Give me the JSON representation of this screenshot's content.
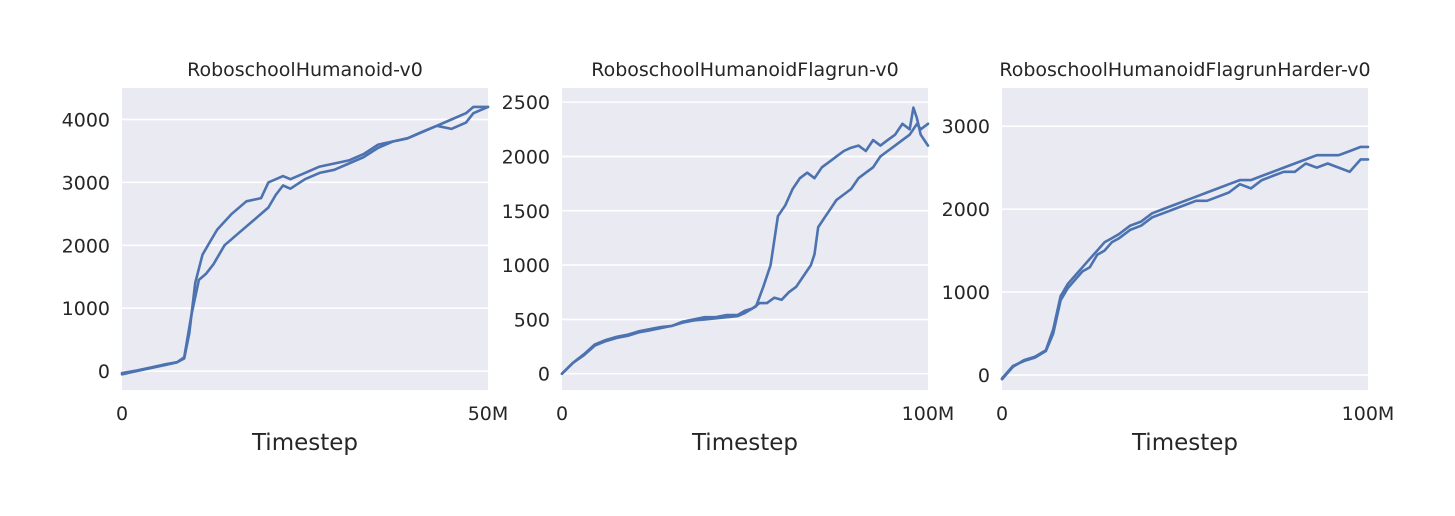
{
  "chart_data": [
    {
      "type": "line",
      "title": "RoboschoolHumanoid-v0",
      "xlabel": "Timestep",
      "ylabel": "",
      "xlim": [
        0,
        50000000
      ],
      "ylim": [
        -300,
        4500
      ],
      "xticks": [
        {
          "value": 0,
          "label": "0"
        },
        {
          "value": 50000000,
          "label": "50M"
        }
      ],
      "yticks": [
        {
          "value": 0,
          "label": "0"
        },
        {
          "value": 1000,
          "label": "1000"
        },
        {
          "value": 2000,
          "label": "2000"
        },
        {
          "value": 3000,
          "label": "3000"
        },
        {
          "value": 4000,
          "label": "4000"
        }
      ],
      "grid": true,
      "series": [
        {
          "x": [
            0,
            2,
            4,
            6,
            7.5,
            8.5,
            9.2,
            10,
            11,
            12,
            13,
            15,
            17,
            19,
            20,
            22,
            23,
            25,
            27,
            29,
            31,
            33,
            35,
            37,
            39,
            41,
            43,
            45,
            47,
            48,
            50
          ],
          "y": [
            -50,
            0,
            50,
            100,
            140,
            200,
            600,
            1400,
            1850,
            2050,
            2250,
            2500,
            2700,
            2750,
            3000,
            3100,
            3050,
            3150,
            3250,
            3300,
            3350,
            3450,
            3600,
            3650,
            3700,
            3800,
            3900,
            4000,
            4100,
            4200,
            4200
          ]
        },
        {
          "x": [
            0,
            2,
            4,
            6,
            7.5,
            8.5,
            9.5,
            10.5,
            11.5,
            12.5,
            14,
            16,
            18,
            20,
            21,
            22,
            23,
            25,
            27,
            29,
            31,
            33,
            35,
            37,
            39,
            41,
            43,
            45,
            47,
            48,
            50
          ],
          "y": [
            -30,
            10,
            60,
            110,
            140,
            220,
            900,
            1450,
            1550,
            1700,
            2000,
            2200,
            2400,
            2600,
            2800,
            2950,
            2900,
            3050,
            3150,
            3200,
            3300,
            3400,
            3550,
            3650,
            3700,
            3800,
            3900,
            3850,
            3950,
            4100,
            4200
          ]
        }
      ]
    },
    {
      "type": "line",
      "title": "RoboschoolHumanoidFlagrun-v0",
      "xlabel": "Timestep",
      "ylabel": "",
      "xlim": [
        0,
        100000000
      ],
      "ylim": [
        -150,
        2630
      ],
      "xticks": [
        {
          "value": 0,
          "label": "0"
        },
        {
          "value": 100000000,
          "label": "100M"
        }
      ],
      "yticks": [
        {
          "value": 0,
          "label": "0"
        },
        {
          "value": 500,
          "label": "500"
        },
        {
          "value": 1000,
          "label": "1000"
        },
        {
          "value": 1500,
          "label": "1500"
        },
        {
          "value": 2000,
          "label": "2000"
        },
        {
          "value": 2500,
          "label": "2500"
        }
      ],
      "grid": true,
      "series": [
        {
          "x": [
            0,
            3,
            6,
            9,
            12,
            15,
            18,
            21,
            24,
            27,
            30,
            33,
            36,
            39,
            42,
            45,
            48,
            50,
            52,
            53,
            55,
            57,
            59,
            61,
            63,
            65,
            67,
            69,
            71,
            73,
            75,
            77,
            79,
            81,
            83,
            85,
            87,
            89,
            91,
            93,
            95,
            96,
            97,
            98,
            100
          ],
          "y": [
            0,
            100,
            180,
            270,
            310,
            340,
            360,
            390,
            410,
            430,
            440,
            480,
            500,
            520,
            520,
            540,
            540,
            580,
            600,
            620,
            800,
            1000,
            1450,
            1550,
            1700,
            1800,
            1850,
            1800,
            1900,
            1950,
            2000,
            2050,
            2080,
            2100,
            2050,
            2150,
            2100,
            2150,
            2200,
            2300,
            2250,
            2450,
            2350,
            2200,
            2100
          ]
        },
        {
          "x": [
            0,
            3,
            6,
            9,
            12,
            15,
            18,
            21,
            24,
            27,
            30,
            33,
            36,
            39,
            42,
            45,
            48,
            50,
            52,
            54,
            56,
            58,
            60,
            62,
            64,
            66,
            68,
            69,
            70,
            71,
            72,
            73,
            75,
            77,
            79,
            81,
            83,
            85,
            87,
            89,
            91,
            93,
            95,
            97,
            98,
            100
          ],
          "y": [
            0,
            100,
            170,
            260,
            300,
            330,
            350,
            380,
            400,
            420,
            440,
            470,
            490,
            500,
            510,
            520,
            530,
            560,
            600,
            650,
            650,
            700,
            680,
            750,
            800,
            900,
            1000,
            1100,
            1350,
            1400,
            1450,
            1500,
            1600,
            1650,
            1700,
            1800,
            1850,
            1900,
            2000,
            2050,
            2100,
            2150,
            2200,
            2300,
            2250,
            2300
          ]
        }
      ]
    },
    {
      "type": "line",
      "title": "RoboschoolHumanoidFlagrunHarder-v0",
      "xlabel": "Timestep",
      "ylabel": "",
      "xlim": [
        0,
        100000000
      ],
      "ylim": [
        -180,
        3460
      ],
      "xticks": [
        {
          "value": 0,
          "label": "0"
        },
        {
          "value": 100000000,
          "label": "100M"
        }
      ],
      "yticks": [
        {
          "value": 0,
          "label": "0"
        },
        {
          "value": 1000,
          "label": "1000"
        },
        {
          "value": 2000,
          "label": "2000"
        },
        {
          "value": 3000,
          "label": "3000"
        }
      ],
      "grid": true,
      "series": [
        {
          "x": [
            0,
            3,
            6,
            9,
            12,
            14,
            16,
            18,
            20,
            22,
            24,
            26,
            28,
            30,
            32,
            35,
            38,
            41,
            44,
            47,
            50,
            53,
            56,
            59,
            62,
            65,
            68,
            71,
            74,
            77,
            80,
            83,
            86,
            89,
            92,
            95,
            98,
            100
          ],
          "y": [
            -50,
            100,
            180,
            220,
            300,
            550,
            950,
            1100,
            1200,
            1300,
            1400,
            1500,
            1600,
            1650,
            1700,
            1800,
            1850,
            1950,
            2000,
            2050,
            2100,
            2150,
            2200,
            2250,
            2300,
            2350,
            2350,
            2400,
            2450,
            2500,
            2550,
            2600,
            2650,
            2650,
            2650,
            2700,
            2750,
            2750
          ]
        },
        {
          "x": [
            0,
            3,
            6,
            9,
            12,
            14,
            16,
            18,
            20,
            22,
            24,
            26,
            28,
            30,
            32,
            35,
            38,
            41,
            44,
            47,
            50,
            53,
            56,
            59,
            62,
            65,
            68,
            71,
            74,
            77,
            80,
            83,
            86,
            89,
            92,
            95,
            98,
            100
          ],
          "y": [
            -40,
            110,
            170,
            210,
            290,
            500,
            900,
            1050,
            1150,
            1250,
            1300,
            1450,
            1500,
            1600,
            1650,
            1750,
            1800,
            1900,
            1950,
            2000,
            2050,
            2100,
            2100,
            2150,
            2200,
            2300,
            2250,
            2350,
            2400,
            2450,
            2450,
            2550,
            2500,
            2550,
            2500,
            2450,
            2600,
            2600
          ]
        }
      ]
    }
  ]
}
